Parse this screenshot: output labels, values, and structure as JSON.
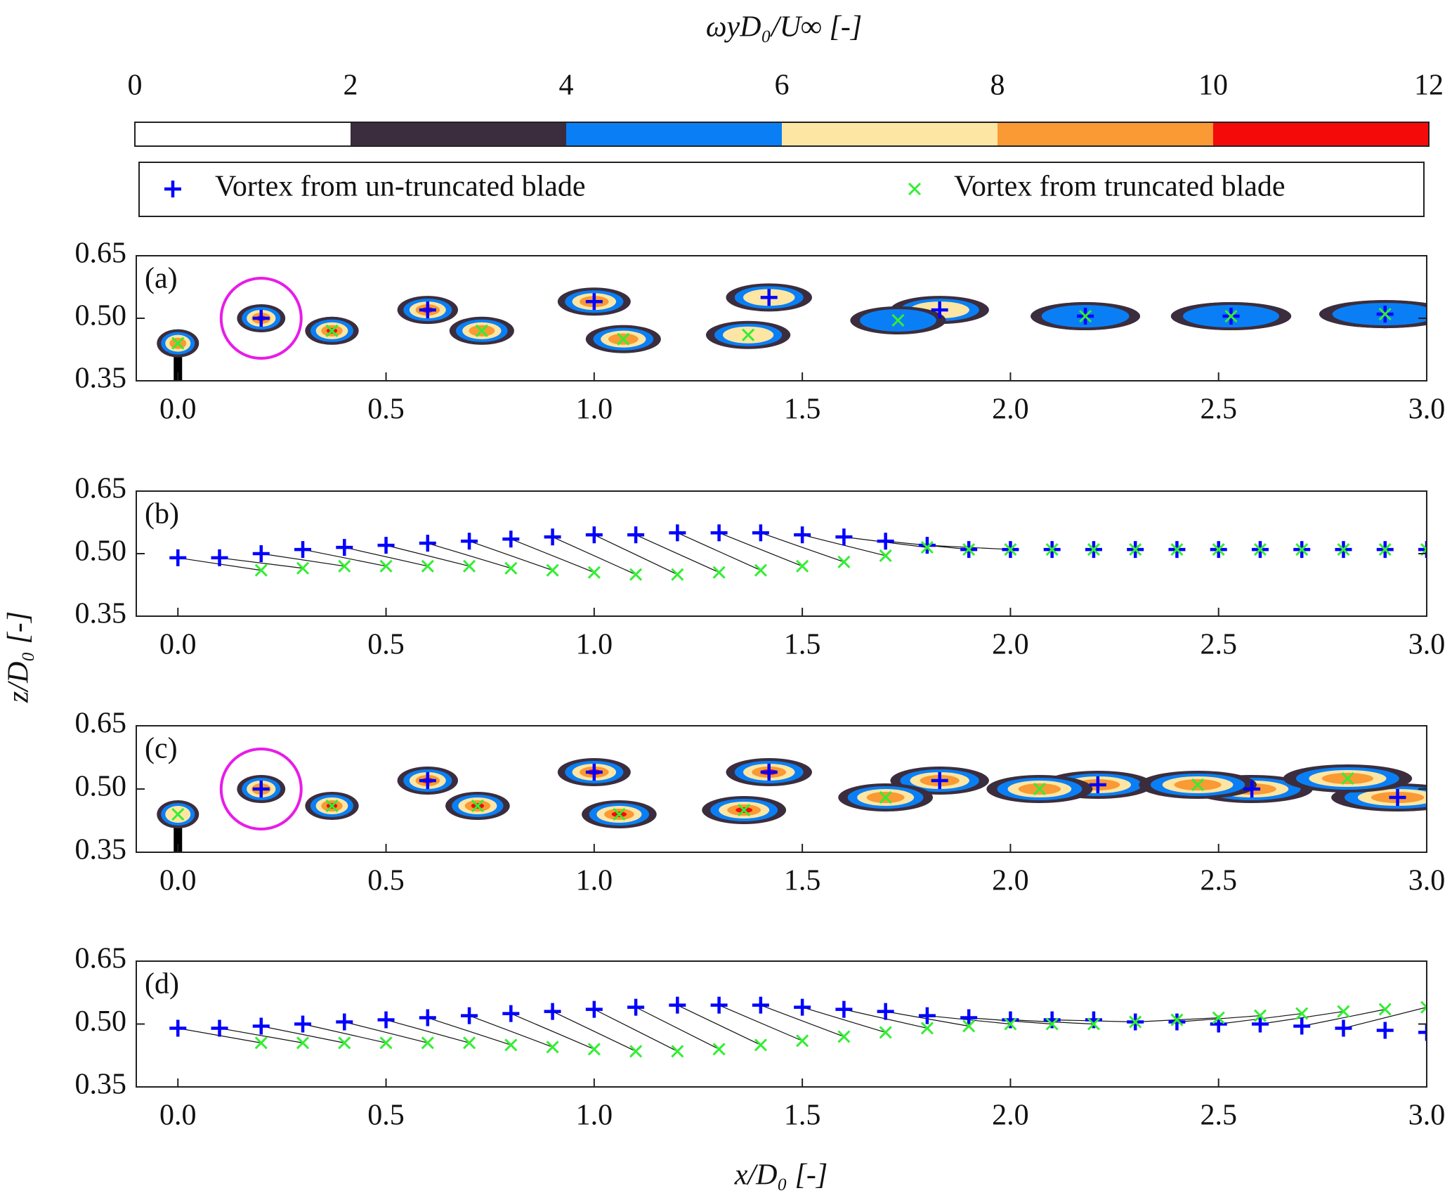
{
  "colorbar": {
    "title": "ωyD₀/U∞ [-]",
    "ticks": [
      0,
      2,
      4,
      6,
      8,
      10,
      12
    ],
    "lim": [
      0,
      12
    ],
    "colors": [
      "#ffffff",
      "#3b2d3d",
      "#0a7ff5",
      "#fde6a4",
      "#f99a34",
      "#f50a0a"
    ]
  },
  "legend": [
    {
      "name": "Vortex from un-truncated blade",
      "marker": "+",
      "color": "#0000ff"
    },
    {
      "name": "Vortex from truncated blade",
      "marker": "x",
      "color": "#33ee33"
    }
  ],
  "ylabel": "z/D₀ [-]",
  "xlabel": "x/D₀ [-]",
  "chart_data": [
    {
      "type": "contour",
      "label": "(a)",
      "xlim": [
        -0.1,
        3.0
      ],
      "ylim": [
        0.35,
        0.65
      ],
      "xticks": [
        {
          "value": 0,
          "label": "0.0"
        },
        0.5,
        {
          "value": 1,
          "label": "1.0"
        },
        1.5,
        {
          "value": 2,
          "label": "2.0"
        },
        2.5,
        {
          "value": 3,
          "label": "3.0"
        }
      ],
      "yticks": [
        0.35,
        {
          "value": 0.5,
          "label": "0.50"
        },
        0.65
      ],
      "series": [
        {
          "marker": "+",
          "color": "#0000ff",
          "x": [
            0.2,
            0.6,
            1.0,
            1.42,
            1.83,
            2.18,
            2.53,
            2.9
          ],
          "z": [
            0.5,
            0.52,
            0.54,
            0.55,
            0.52,
            0.505,
            0.505,
            0.51
          ],
          "peak": [
            12,
            12,
            10,
            8,
            8,
            6,
            6,
            6
          ]
        },
        {
          "marker": "x",
          "color": "#33ee33",
          "x": [
            0.0,
            0.37,
            0.73,
            1.07,
            1.37,
            1.73,
            2.18,
            2.53,
            2.9
          ],
          "z": [
            0.44,
            0.47,
            0.47,
            0.45,
            0.46,
            0.495,
            0.505,
            0.505,
            0.51
          ],
          "peak": [
            10,
            12,
            10,
            10,
            8,
            6,
            6,
            6,
            6
          ]
        }
      ]
    },
    {
      "type": "scatter",
      "label": "(b)",
      "xlim": [
        -0.1,
        3.0
      ],
      "ylim": [
        0.35,
        0.65
      ],
      "xticks": [
        {
          "value": 0,
          "label": "0.0"
        },
        0.5,
        {
          "value": 1,
          "label": "1.0"
        },
        1.5,
        {
          "value": 2,
          "label": "2.0"
        },
        2.5,
        {
          "value": 3,
          "label": "3.0"
        }
      ],
      "yticks": [
        0.35,
        {
          "value": 0.5,
          "label": "0.50"
        },
        0.65
      ],
      "series": [
        {
          "marker": "+",
          "color": "#0000ff",
          "x": [
            0.0,
            0.1,
            0.2,
            0.3,
            0.4,
            0.5,
            0.6,
            0.7,
            0.8,
            0.9,
            1.0,
            1.1,
            1.2,
            1.3,
            1.4,
            1.5,
            1.6,
            1.7,
            1.8,
            1.9,
            2.0,
            2.1,
            2.2,
            2.3,
            2.4,
            2.5,
            2.6,
            2.7,
            2.8,
            2.9,
            3.0
          ],
          "z": [
            0.49,
            0.49,
            0.5,
            0.51,
            0.515,
            0.52,
            0.525,
            0.53,
            0.535,
            0.54,
            0.545,
            0.545,
            0.55,
            0.55,
            0.55,
            0.545,
            0.54,
            0.53,
            0.52,
            0.51,
            0.51,
            0.51,
            0.51,
            0.51,
            0.51,
            0.51,
            0.51,
            0.51,
            0.51,
            0.51,
            0.51
          ]
        },
        {
          "marker": "x",
          "color": "#33ee33",
          "x": [
            0.2,
            0.3,
            0.4,
            0.5,
            0.6,
            0.7,
            0.8,
            0.9,
            1.0,
            1.1,
            1.2,
            1.3,
            1.4,
            1.5,
            1.6,
            1.7,
            1.8,
            1.9,
            2.0,
            2.1,
            2.2,
            2.3,
            2.4,
            2.5,
            2.6,
            2.7,
            2.8,
            2.9,
            3.0
          ],
          "z": [
            0.46,
            0.465,
            0.47,
            0.47,
            0.47,
            0.47,
            0.465,
            0.46,
            0.455,
            0.45,
            0.45,
            0.455,
            0.46,
            0.47,
            0.48,
            0.495,
            0.515,
            0.51,
            0.51,
            0.51,
            0.51,
            0.51,
            0.51,
            0.51,
            0.51,
            0.51,
            0.51,
            0.51,
            0.51
          ]
        }
      ]
    },
    {
      "type": "contour",
      "label": "(c)",
      "xlim": [
        -0.1,
        3.0
      ],
      "ylim": [
        0.35,
        0.65
      ],
      "xticks": [
        {
          "value": 0,
          "label": "0.0"
        },
        0.5,
        {
          "value": 1,
          "label": "1.0"
        },
        1.5,
        {
          "value": 2,
          "label": "2.0"
        },
        2.5,
        {
          "value": 3,
          "label": "3.0"
        }
      ],
      "yticks": [
        0.35,
        {
          "value": 0.5,
          "label": "0.50"
        },
        0.65
      ],
      "series": [
        {
          "marker": "+",
          "color": "#0000ff",
          "x": [
            0.2,
            0.6,
            1.0,
            1.42,
            1.83,
            2.21,
            2.58,
            2.93
          ],
          "z": [
            0.5,
            0.52,
            0.54,
            0.54,
            0.52,
            0.51,
            0.5,
            0.48
          ],
          "peak": [
            10,
            12,
            12,
            12,
            10,
            10,
            10,
            10
          ]
        },
        {
          "marker": "x",
          "color": "#33ee33",
          "x": [
            0.0,
            0.37,
            0.72,
            1.06,
            1.36,
            1.7,
            2.07,
            2.45,
            2.81
          ],
          "z": [
            0.44,
            0.46,
            0.46,
            0.44,
            0.45,
            0.48,
            0.5,
            0.51,
            0.525
          ],
          "peak": [
            8,
            12,
            12,
            12,
            12,
            10,
            10,
            10,
            10
          ]
        }
      ]
    },
    {
      "type": "scatter",
      "label": "(d)",
      "xlim": [
        -0.1,
        3.0
      ],
      "ylim": [
        0.35,
        0.65
      ],
      "xticks": [
        {
          "value": 0,
          "label": "0.0"
        },
        0.5,
        {
          "value": 1,
          "label": "1.0"
        },
        1.5,
        {
          "value": 2,
          "label": "2.0"
        },
        2.5,
        {
          "value": 3,
          "label": "3.0"
        }
      ],
      "yticks": [
        0.35,
        {
          "value": 0.5,
          "label": "0.50"
        },
        0.65
      ],
      "series": [
        {
          "marker": "+",
          "color": "#0000ff",
          "x": [
            0.0,
            0.1,
            0.2,
            0.3,
            0.4,
            0.5,
            0.6,
            0.7,
            0.8,
            0.9,
            1.0,
            1.1,
            1.2,
            1.3,
            1.4,
            1.5,
            1.6,
            1.7,
            1.8,
            1.9,
            2.0,
            2.1,
            2.2,
            2.3,
            2.4,
            2.5,
            2.6,
            2.7,
            2.8,
            2.9,
            3.0
          ],
          "z": [
            0.49,
            0.49,
            0.495,
            0.5,
            0.505,
            0.51,
            0.515,
            0.52,
            0.525,
            0.53,
            0.535,
            0.54,
            0.545,
            0.545,
            0.545,
            0.54,
            0.535,
            0.53,
            0.52,
            0.515,
            0.51,
            0.51,
            0.51,
            0.505,
            0.505,
            0.5,
            0.5,
            0.495,
            0.49,
            0.485,
            0.48
          ]
        },
        {
          "marker": "x",
          "color": "#33ee33",
          "x": [
            0.2,
            0.3,
            0.4,
            0.5,
            0.6,
            0.7,
            0.8,
            0.9,
            1.0,
            1.1,
            1.2,
            1.3,
            1.4,
            1.5,
            1.6,
            1.7,
            1.8,
            1.9,
            2.0,
            2.1,
            2.2,
            2.3,
            2.4,
            2.5,
            2.6,
            2.7,
            2.8,
            2.9,
            3.0
          ],
          "z": [
            0.455,
            0.455,
            0.455,
            0.455,
            0.455,
            0.455,
            0.45,
            0.445,
            0.44,
            0.435,
            0.435,
            0.44,
            0.45,
            0.46,
            0.47,
            0.48,
            0.49,
            0.495,
            0.5,
            0.5,
            0.5,
            0.505,
            0.51,
            0.515,
            0.52,
            0.525,
            0.53,
            0.535,
            0.54
          ]
        }
      ]
    }
  ]
}
